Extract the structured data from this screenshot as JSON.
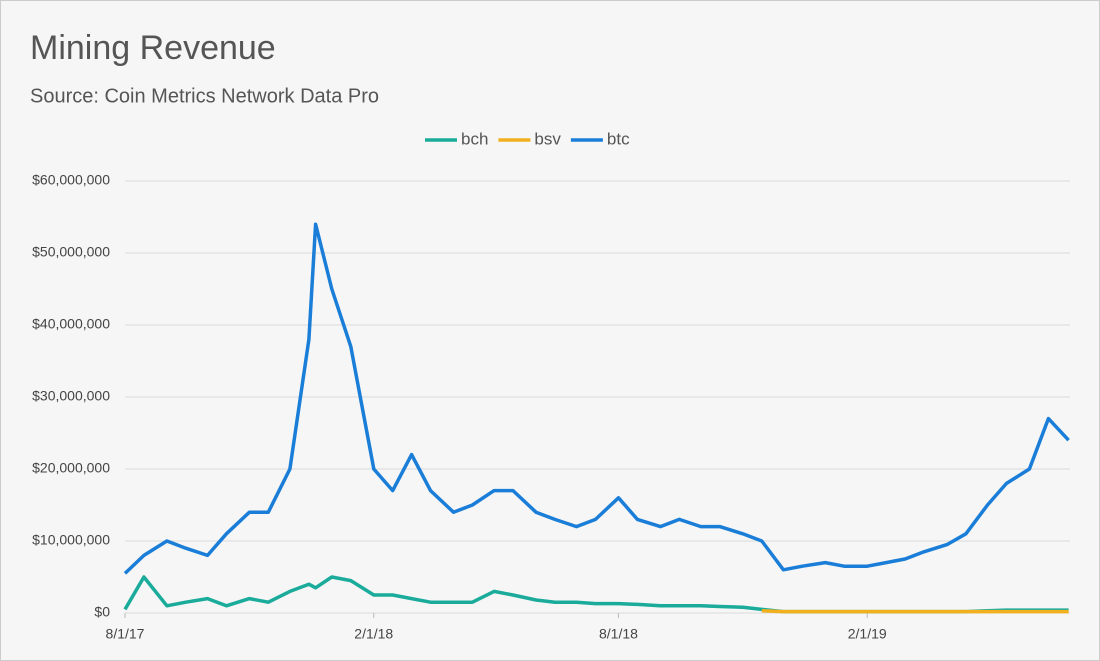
{
  "chart_data": {
    "type": "line",
    "title": "Mining Revenue",
    "subtitle": "Source: Coin Metrics Network Data Pro",
    "x": [
      "2017-08-01",
      "2017-08-15",
      "2017-09-01",
      "2017-09-15",
      "2017-10-01",
      "2017-10-15",
      "2017-11-01",
      "2017-11-15",
      "2017-12-01",
      "2017-12-15",
      "2017-12-20",
      "2018-01-01",
      "2018-01-15",
      "2018-02-01",
      "2018-02-15",
      "2018-03-01",
      "2018-03-15",
      "2018-04-01",
      "2018-04-15",
      "2018-05-01",
      "2018-05-15",
      "2018-06-01",
      "2018-06-15",
      "2018-07-01",
      "2018-07-15",
      "2018-08-01",
      "2018-08-15",
      "2018-09-01",
      "2018-09-15",
      "2018-10-01",
      "2018-10-15",
      "2018-11-01",
      "2018-11-15",
      "2018-12-01",
      "2018-12-15",
      "2019-01-01",
      "2019-01-15",
      "2019-02-01",
      "2019-02-15",
      "2019-03-01",
      "2019-03-15",
      "2019-04-01",
      "2019-04-15",
      "2019-05-01",
      "2019-05-15",
      "2019-06-01",
      "2019-06-15",
      "2019-06-30"
    ],
    "series": [
      {
        "name": "bch",
        "color": "#1aab9b",
        "values": [
          500000,
          5000000,
          1000000,
          1500000,
          2000000,
          1000000,
          2000000,
          1500000,
          3000000,
          4000000,
          3500000,
          5000000,
          4500000,
          2500000,
          2500000,
          2000000,
          1500000,
          1500000,
          1500000,
          3000000,
          2500000,
          1800000,
          1500000,
          1500000,
          1300000,
          1300000,
          1200000,
          1000000,
          1000000,
          1000000,
          900000,
          800000,
          500000,
          200000,
          200000,
          200000,
          200000,
          200000,
          200000,
          200000,
          200000,
          200000,
          200000,
          300000,
          400000,
          400000,
          400000,
          400000
        ]
      },
      {
        "name": "bsv",
        "color": "#f2b01e",
        "values": [
          null,
          null,
          null,
          null,
          null,
          null,
          null,
          null,
          null,
          null,
          null,
          null,
          null,
          null,
          null,
          null,
          null,
          null,
          null,
          null,
          null,
          null,
          null,
          null,
          null,
          null,
          null,
          null,
          null,
          null,
          null,
          null,
          300000,
          200000,
          200000,
          200000,
          200000,
          200000,
          200000,
          200000,
          200000,
          200000,
          200000,
          200000,
          200000,
          200000,
          200000,
          200000
        ]
      },
      {
        "name": "btc",
        "color": "#1a7ed8",
        "values": [
          5500000,
          8000000,
          10000000,
          9000000,
          8000000,
          11000000,
          14000000,
          14000000,
          20000000,
          38000000,
          54000000,
          45000000,
          37000000,
          20000000,
          17000000,
          22000000,
          17000000,
          14000000,
          15000000,
          17000000,
          17000000,
          14000000,
          13000000,
          12000000,
          13000000,
          16000000,
          13000000,
          12000000,
          13000000,
          12000000,
          12000000,
          11000000,
          10000000,
          6000000,
          6500000,
          7000000,
          6500000,
          6500000,
          7000000,
          7500000,
          8500000,
          9500000,
          11000000,
          15000000,
          18000000,
          20000000,
          27000000,
          24000000
        ]
      }
    ],
    "xlim": [
      "2017-08-01",
      "2019-07-01"
    ],
    "xticks": [
      {
        "value": "2017-08-01",
        "label": "8/1/17"
      },
      {
        "value": "2018-02-01",
        "label": "2/1/18"
      },
      {
        "value": "2018-08-01",
        "label": "8/1/18"
      },
      {
        "value": "2019-02-01",
        "label": "2/1/19"
      }
    ],
    "ylim": [
      0,
      60000000
    ],
    "yticks": [
      {
        "value": 0,
        "label": "$0"
      },
      {
        "value": 10000000,
        "label": "$10,000,000"
      },
      {
        "value": 20000000,
        "label": "$20,000,000"
      },
      {
        "value": 30000000,
        "label": "$30,000,000"
      },
      {
        "value": 40000000,
        "label": "$40,000,000"
      },
      {
        "value": 50000000,
        "label": "$50,000,000"
      },
      {
        "value": 60000000,
        "label": "$60,000,000"
      }
    ],
    "grid": true,
    "legend": "top"
  }
}
